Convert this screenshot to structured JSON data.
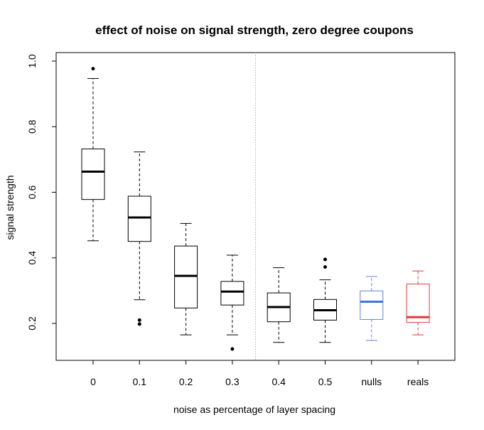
{
  "chart_data": {
    "type": "box",
    "title": "effect of noise on signal strength, zero degree coupons",
    "xlabel": "noise as percentage of layer spacing",
    "ylabel": "signal strength",
    "ylim": [
      0.09,
      1.01
    ],
    "yticks": [
      0.2,
      0.4,
      0.6,
      0.8,
      1.0
    ],
    "ytick_labels": [
      "0.2",
      "0.4",
      "0.6",
      "0.8",
      "1.0"
    ],
    "grid": false,
    "legend": "none",
    "separator_after_category": "0.3",
    "categories": [
      "0",
      "0.1",
      "0.2",
      "0.3",
      "0.4",
      "0.5",
      "nulls",
      "reals"
    ],
    "boxes": [
      {
        "label": "0",
        "whisker_low": 0.452,
        "q1": 0.578,
        "median": 0.663,
        "q3": 0.732,
        "whisker_high": 0.947,
        "outliers": [
          0.977
        ],
        "color": "#000000",
        "median_color": "#000000"
      },
      {
        "label": "0.1",
        "whisker_low": 0.272,
        "q1": 0.45,
        "median": 0.523,
        "q3": 0.588,
        "whisker_high": 0.723,
        "outliers": [
          0.21,
          0.198
        ],
        "color": "#000000",
        "median_color": "#000000"
      },
      {
        "label": "0.2",
        "whisker_low": 0.165,
        "q1": 0.247,
        "median": 0.345,
        "q3": 0.436,
        "whisker_high": 0.505,
        "outliers": [],
        "color": "#000000",
        "median_color": "#000000"
      },
      {
        "label": "0.3",
        "whisker_low": 0.165,
        "q1": 0.256,
        "median": 0.297,
        "q3": 0.328,
        "whisker_high": 0.408,
        "outliers": [
          0.122
        ],
        "color": "#000000",
        "median_color": "#000000"
      },
      {
        "label": "0.4",
        "whisker_low": 0.142,
        "q1": 0.205,
        "median": 0.25,
        "q3": 0.293,
        "whisker_high": 0.37,
        "outliers": [],
        "color": "#000000",
        "median_color": "#000000"
      },
      {
        "label": "0.5",
        "whisker_low": 0.142,
        "q1": 0.21,
        "median": 0.24,
        "q3": 0.273,
        "whisker_high": 0.333,
        "outliers": [
          0.395,
          0.372
        ],
        "color": "#000000",
        "median_color": "#000000"
      },
      {
        "label": "nulls",
        "whisker_low": 0.148,
        "q1": 0.212,
        "median": 0.266,
        "q3": 0.299,
        "whisker_high": 0.343,
        "outliers": [],
        "color": "#5b86d8",
        "median_color": "#3f74d9"
      },
      {
        "label": "reals",
        "whisker_low": 0.165,
        "q1": 0.203,
        "median": 0.219,
        "q3": 0.32,
        "whisker_high": 0.36,
        "outliers": [],
        "color": "#e03a3a",
        "median_color": "#e03a3a"
      }
    ]
  }
}
